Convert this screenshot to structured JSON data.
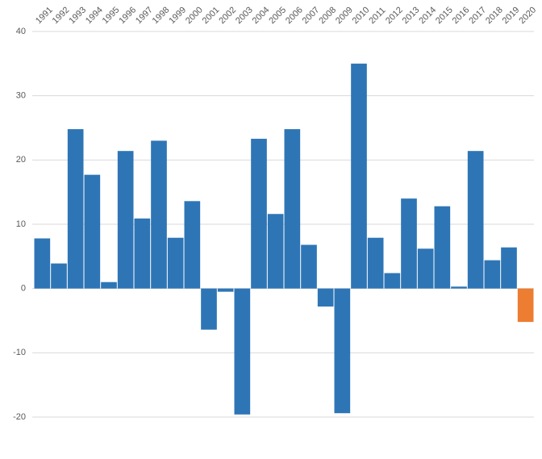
{
  "chart_data": {
    "type": "bar",
    "categories": [
      "1991",
      "1992",
      "1993",
      "1994",
      "1995",
      "1996",
      "1997",
      "1998",
      "1999",
      "2000",
      "2001",
      "2002",
      "2003",
      "2004",
      "2005",
      "2006",
      "2007",
      "2008",
      "2009",
      "2010",
      "2011",
      "2012",
      "2013",
      "2014",
      "2015",
      "2016",
      "2017",
      "2018",
      "2019",
      "2020"
    ],
    "values": [
      7.8,
      3.9,
      24.8,
      17.7,
      1.0,
      21.4,
      10.9,
      23.0,
      7.9,
      13.6,
      -6.4,
      -0.5,
      -19.6,
      23.3,
      11.6,
      24.8,
      6.8,
      -2.8,
      -19.4,
      35.0,
      7.9,
      2.4,
      14.0,
      6.2,
      12.8,
      0.3,
      21.4,
      4.4,
      6.4,
      -5.2
    ],
    "colors": [
      "#2e75b6",
      "#2e75b6",
      "#2e75b6",
      "#2e75b6",
      "#2e75b6",
      "#2e75b6",
      "#2e75b6",
      "#2e75b6",
      "#2e75b6",
      "#2e75b6",
      "#2e75b6",
      "#2e75b6",
      "#2e75b6",
      "#2e75b6",
      "#2e75b6",
      "#2e75b6",
      "#2e75b6",
      "#2e75b6",
      "#2e75b6",
      "#2e75b6",
      "#2e75b6",
      "#2e75b6",
      "#2e75b6",
      "#2e75b6",
      "#2e75b6",
      "#2e75b6",
      "#2e75b6",
      "#2e75b6",
      "#2e75b6",
      "#ed7d31"
    ],
    "ylim": [
      -20,
      40
    ],
    "yticks": [
      -20,
      -10,
      0,
      10,
      20,
      30,
      40
    ],
    "grid": true
  }
}
